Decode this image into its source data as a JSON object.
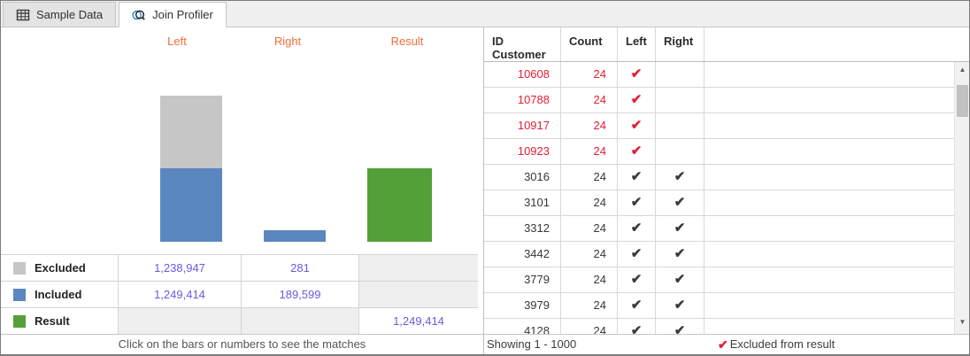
{
  "tabs": {
    "items": [
      {
        "label": "Sample Data",
        "active": false
      },
      {
        "label": "Join Profiler",
        "active": true
      }
    ]
  },
  "profiler": {
    "column_headers": [
      "Left",
      "Right",
      "Result"
    ],
    "accent_orange": "#ee6f3b",
    "link_color": "#6a5ae0",
    "summary": {
      "rows": [
        {
          "label": "Excluded",
          "swatch": "#c6c6c6",
          "left": "1,238,947",
          "right": "281",
          "result": null
        },
        {
          "label": "Included",
          "swatch": "#5b87c0",
          "left": "1,249,414",
          "right": "189,599",
          "result": null
        },
        {
          "label": "Result",
          "swatch": "#54a038",
          "left": null,
          "right": null,
          "result": "1,249,414"
        }
      ],
      "hint": "Click on the bars or numbers to see the matches"
    }
  },
  "chart_data": {
    "type": "bar",
    "stacked": true,
    "categories": [
      "Left",
      "Right",
      "Result"
    ],
    "series": [
      {
        "name": "Excluded",
        "color": "#c6c6c6",
        "values": [
          1238947,
          281,
          null
        ]
      },
      {
        "name": "Included",
        "color": "#5b87c0",
        "values": [
          1249414,
          189599,
          null
        ]
      },
      {
        "name": "Result",
        "color": "#54a038",
        "values": [
          null,
          null,
          1249414
        ]
      }
    ],
    "title": "",
    "xlabel": "",
    "ylabel": "",
    "axis": "none",
    "legend_position": "table-left"
  },
  "matches": {
    "headers": [
      "ID Customer",
      "Count",
      "Left",
      "Right"
    ],
    "rows": [
      {
        "id": "10608",
        "count": "24",
        "left": true,
        "right": false,
        "excluded": true
      },
      {
        "id": "10788",
        "count": "24",
        "left": true,
        "right": false,
        "excluded": true
      },
      {
        "id": "10917",
        "count": "24",
        "left": true,
        "right": false,
        "excluded": true
      },
      {
        "id": "10923",
        "count": "24",
        "left": true,
        "right": false,
        "excluded": true
      },
      {
        "id": "3016",
        "count": "24",
        "left": true,
        "right": true,
        "excluded": false
      },
      {
        "id": "3101",
        "count": "24",
        "left": true,
        "right": true,
        "excluded": false
      },
      {
        "id": "3312",
        "count": "24",
        "left": true,
        "right": true,
        "excluded": false
      },
      {
        "id": "3442",
        "count": "24",
        "left": true,
        "right": true,
        "excluded": false
      },
      {
        "id": "3779",
        "count": "24",
        "left": true,
        "right": true,
        "excluded": false
      },
      {
        "id": "3979",
        "count": "24",
        "left": true,
        "right": true,
        "excluded": false
      },
      {
        "id": "4128",
        "count": "24",
        "left": true,
        "right": true,
        "excluded": false
      }
    ],
    "status": "Showing 1 - 1000",
    "legend": "Excluded from result"
  }
}
